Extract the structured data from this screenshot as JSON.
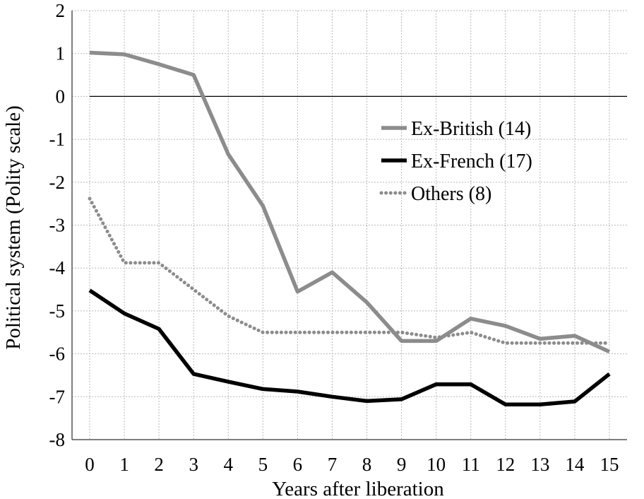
{
  "chart_data": {
    "type": "line",
    "title": "",
    "xlabel": "Years after liberation",
    "ylabel": "Political system (Polity scale)",
    "xlim": [
      0,
      15
    ],
    "ylim": [
      -8,
      2
    ],
    "x": [
      0,
      1,
      2,
      3,
      4,
      5,
      6,
      7,
      8,
      9,
      10,
      11,
      12,
      13,
      14,
      15
    ],
    "x_ticks": [
      "0",
      "1",
      "2",
      "3",
      "4",
      "5",
      "6",
      "7",
      "8",
      "9",
      "10",
      "11",
      "12",
      "13",
      "14",
      "15"
    ],
    "y_ticks": [
      "2",
      "1",
      "0",
      "-1",
      "-2",
      "-3",
      "-4",
      "-5",
      "-6",
      "-7",
      "-8"
    ],
    "y_tick_values": [
      2,
      1,
      0,
      -1,
      -2,
      -3,
      -4,
      -5,
      -6,
      -7,
      -8
    ],
    "grid": true,
    "reference_line_y": 0,
    "legend_position": "right",
    "series": [
      {
        "name": "Ex-British (14)",
        "color": "#8c8c8c",
        "style": "solid",
        "values": [
          1.02,
          0.98,
          0.75,
          0.5,
          -1.35,
          -2.55,
          -4.55,
          -4.1,
          -4.8,
          -5.7,
          -5.7,
          -5.18,
          -5.35,
          -5.65,
          -5.58,
          -5.95
        ]
      },
      {
        "name": "Ex-French (17)",
        "color": "#000000",
        "style": "solid",
        "values": [
          -4.52,
          -5.06,
          -5.42,
          -6.47,
          -6.65,
          -6.82,
          -6.88,
          -7.0,
          -7.1,
          -7.06,
          -6.71,
          -6.71,
          -7.18,
          -7.18,
          -7.11,
          -6.47
        ]
      },
      {
        "name": "Others (8)",
        "color": "#8c8c8c",
        "style": "dotted",
        "values": [
          -2.38,
          -3.88,
          -3.88,
          -4.5,
          -5.12,
          -5.5,
          -5.5,
          -5.5,
          -5.5,
          -5.5,
          -5.62,
          -5.5,
          -5.75,
          -5.75,
          -5.75,
          -5.75
        ]
      }
    ]
  }
}
